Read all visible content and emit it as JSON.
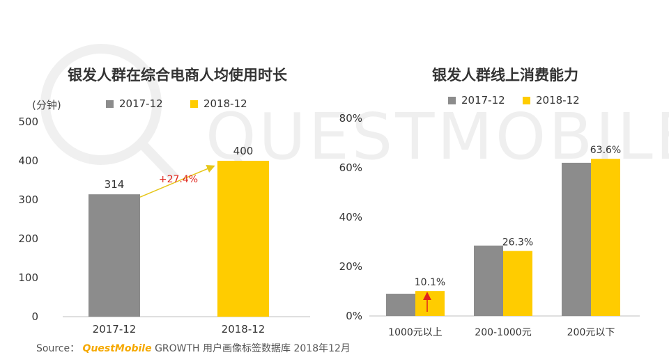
{
  "chart_data": [
    {
      "type": "bar",
      "title": "银发人群在综合电商人均使用时长",
      "unit_label": "(分钟)",
      "categories": [
        "2017-12",
        "2018-12"
      ],
      "series": [
        {
          "name": "2017-12",
          "values": [
            314,
            null
          ],
          "color": "#8c8c8c"
        },
        {
          "name": "2018-12",
          "values": [
            null,
            400
          ],
          "color": "#ffcc00"
        }
      ],
      "ylim": [
        0,
        500
      ],
      "yticks": [
        "0",
        "100",
        "200",
        "300",
        "400",
        "500"
      ],
      "data_labels": [
        "314",
        "400"
      ],
      "annotation": "+27.4%"
    },
    {
      "type": "bar",
      "title": "银发人群线上消费能力",
      "categories": [
        "1000元以上",
        "200-1000元",
        "200元以下"
      ],
      "series": [
        {
          "name": "2017-12",
          "values": [
            9.0,
            28.5,
            62.0
          ],
          "color": "#8c8c8c"
        },
        {
          "name": "2018-12",
          "values": [
            10.1,
            26.3,
            63.6
          ],
          "color": "#ffcc00"
        }
      ],
      "ylim": [
        0,
        80
      ],
      "yticks": [
        "0%",
        "20%",
        "40%",
        "60%",
        "80%"
      ],
      "data_labels": [
        "10.1%",
        "26.3%",
        "63.6%"
      ]
    }
  ],
  "watermark": "QUESTMOBILE",
  "source": {
    "prefix": "Source：",
    "brand": "QuestMobile",
    "text": "GROWTH 用户画像标签数据库 2018年12月"
  },
  "colors": {
    "gray": "#8c8c8c",
    "yellow": "#ffcc00",
    "arrow": "#e6c619",
    "annot": "#e0241b"
  }
}
